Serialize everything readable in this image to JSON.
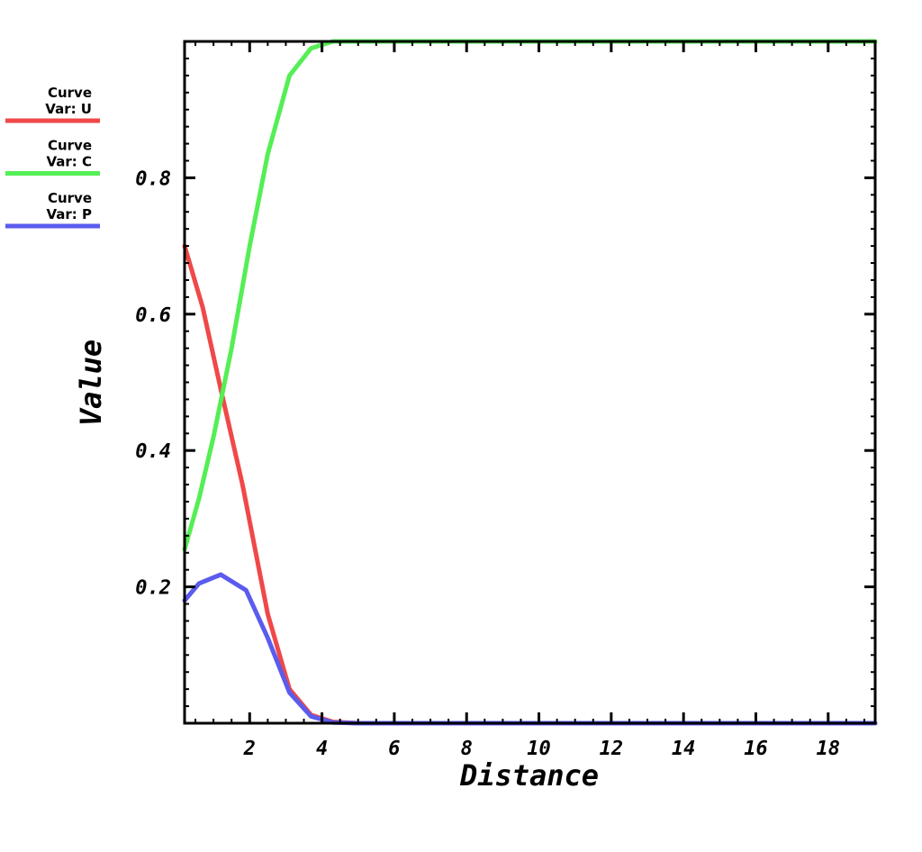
{
  "chart_data": {
    "type": "line",
    "xlabel": "Distance",
    "ylabel": "Value",
    "xlim": [
      0.2,
      19.3
    ],
    "ylim": [
      0.0,
      1.0
    ],
    "x_ticks": [
      2,
      4,
      6,
      8,
      10,
      12,
      14,
      16,
      18
    ],
    "y_ticks": [
      0.2,
      0.4,
      0.6,
      0.8
    ],
    "x_tick_labels": [
      "2",
      "4",
      "6",
      "8",
      "10",
      "12",
      "14",
      "16",
      "18"
    ],
    "y_tick_labels": [
      "0.2",
      "0.4",
      "0.6",
      "0.8"
    ],
    "legend_placement": "left",
    "grid": false,
    "series": [
      {
        "name": "Curve Var: U",
        "legend_line1": "Curve",
        "legend_line2": "Var: U",
        "color": "#f04848",
        "points": [
          [
            0.2,
            0.7
          ],
          [
            0.7,
            0.61
          ],
          [
            1.2,
            0.49
          ],
          [
            1.8,
            0.35
          ],
          [
            2.5,
            0.16
          ],
          [
            3.1,
            0.05
          ],
          [
            3.7,
            0.012
          ],
          [
            4.3,
            0.002
          ],
          [
            5.0,
            0.0
          ],
          [
            19.3,
            0.0
          ]
        ]
      },
      {
        "name": "Curve Var: C",
        "legend_line1": "Curve",
        "legend_line2": "Var: C",
        "color": "#55ee55",
        "points": [
          [
            0.2,
            0.255
          ],
          [
            0.6,
            0.33
          ],
          [
            1.0,
            0.42
          ],
          [
            1.5,
            0.55
          ],
          [
            2.0,
            0.7
          ],
          [
            2.5,
            0.835
          ],
          [
            3.1,
            0.95
          ],
          [
            3.7,
            0.99
          ],
          [
            4.3,
            1.0
          ],
          [
            19.3,
            1.0
          ]
        ]
      },
      {
        "name": "Curve Var: P",
        "legend_line1": "Curve",
        "legend_line2": "Var: P",
        "color": "#5b5bee",
        "points": [
          [
            0.2,
            0.18
          ],
          [
            0.6,
            0.205
          ],
          [
            1.2,
            0.218
          ],
          [
            1.9,
            0.195
          ],
          [
            2.5,
            0.125
          ],
          [
            3.1,
            0.045
          ],
          [
            3.7,
            0.01
          ],
          [
            4.3,
            0.001
          ],
          [
            5.0,
            0.0
          ],
          [
            19.3,
            0.0
          ]
        ]
      }
    ]
  }
}
